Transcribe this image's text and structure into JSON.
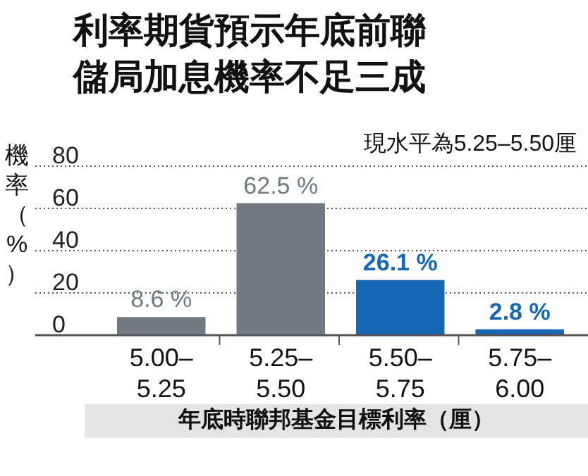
{
  "chart_data": {
    "type": "bar",
    "title": "利率期貨預示年底前聯儲局加息機率不足三成",
    "ylabel": "機率（%）",
    "xlabel": "年底時聯邦基金目標利率（厘）",
    "annotations": [
      "現水平為5.25–5.50厘"
    ],
    "categories": [
      "5.00–5.25",
      "5.25–5.50",
      "5.50–5.75",
      "5.75–6.00"
    ],
    "values": [
      8.6,
      62.5,
      26.1,
      2.8
    ],
    "colors": [
      "#707a80",
      "#707a80",
      "#1668b4",
      "#1668b4"
    ],
    "value_labels": [
      "8.6 %",
      "62.5 %",
      "26.1 %",
      "2.8 %"
    ],
    "ylim": [
      0,
      80
    ],
    "yticks": [
      0,
      20,
      40,
      60,
      80
    ],
    "grid": "y"
  }
}
